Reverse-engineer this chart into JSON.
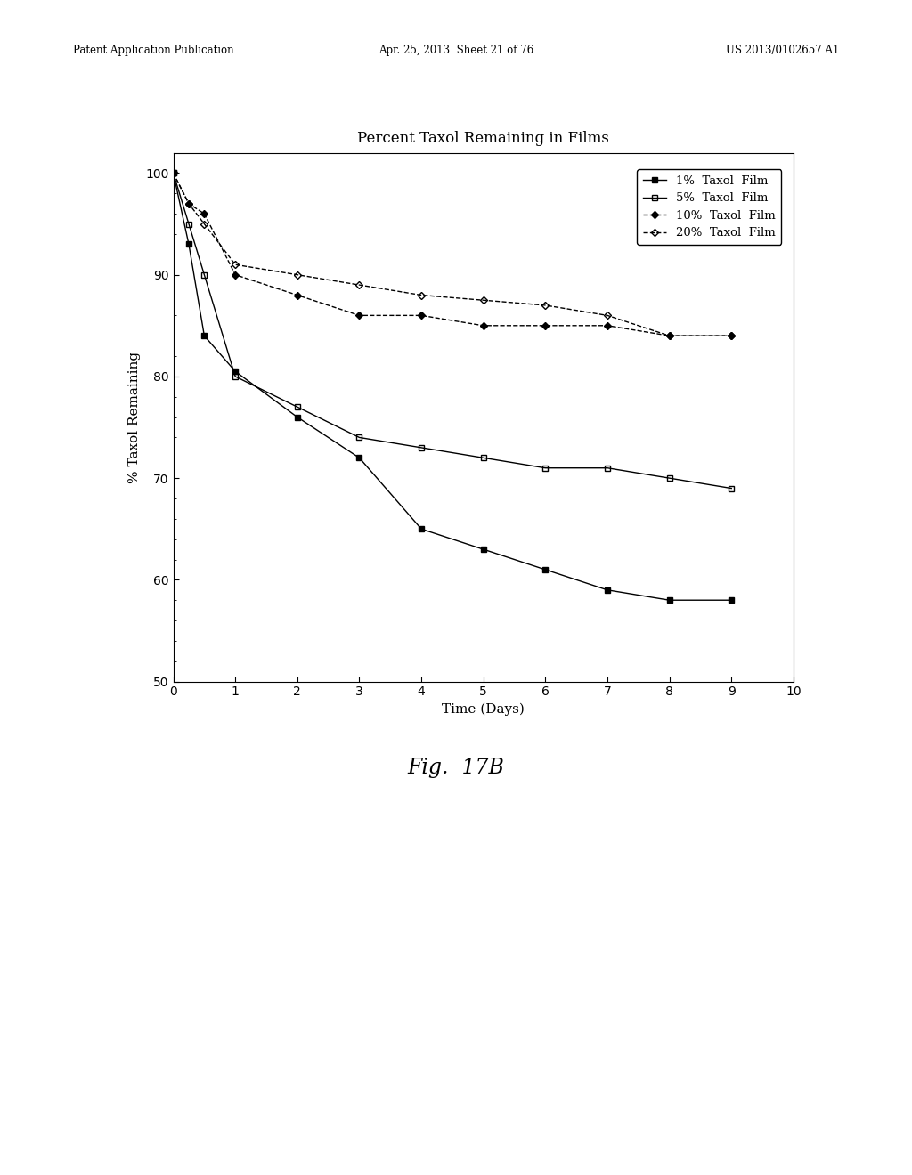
{
  "title": "Percent Taxol Remaining in Films",
  "xlabel": "Time (Days)",
  "ylabel": "% Taxol Remaining",
  "fig_caption": "Fig.  17B",
  "xlim": [
    0,
    10
  ],
  "ylim": [
    50,
    102
  ],
  "yticks": [
    50,
    60,
    70,
    80,
    90,
    100
  ],
  "xticks": [
    0,
    1,
    2,
    3,
    4,
    5,
    6,
    7,
    8,
    9,
    10
  ],
  "series": [
    {
      "label": "1%  Taxol  Film",
      "x": [
        0,
        0.25,
        0.5,
        1,
        2,
        3,
        4,
        5,
        6,
        7,
        8,
        9
      ],
      "y": [
        100,
        93,
        84,
        80.5,
        76,
        72,
        65,
        63,
        61,
        59,
        58,
        58
      ],
      "marker": "s",
      "fillstyle": "full",
      "linestyle": "-",
      "color": "black",
      "markersize": 5
    },
    {
      "label": "5%  Taxol  Film",
      "x": [
        0,
        0.25,
        0.5,
        1,
        2,
        3,
        4,
        5,
        6,
        7,
        8,
        9
      ],
      "y": [
        100,
        95,
        90,
        80,
        77,
        74,
        73,
        72,
        71,
        71,
        70,
        69
      ],
      "marker": "s",
      "fillstyle": "none",
      "linestyle": "-",
      "color": "black",
      "markersize": 5
    },
    {
      "label": "10%  Taxol  Film",
      "x": [
        0,
        0.25,
        0.5,
        1,
        2,
        3,
        4,
        5,
        6,
        7,
        8,
        9
      ],
      "y": [
        100,
        97,
        96,
        90,
        88,
        86,
        86,
        85,
        85,
        85,
        84,
        84
      ],
      "marker": "D",
      "fillstyle": "full",
      "linestyle": "--",
      "color": "black",
      "markersize": 4
    },
    {
      "label": "20%  Taxol  Film",
      "x": [
        0,
        0.25,
        0.5,
        1,
        2,
        3,
        4,
        5,
        6,
        7,
        8,
        9
      ],
      "y": [
        100,
        97,
        95,
        91,
        90,
        89,
        88,
        87.5,
        87,
        86,
        84,
        84
      ],
      "marker": "D",
      "fillstyle": "none",
      "linestyle": "--",
      "color": "black",
      "markersize": 4
    }
  ],
  "background_color": "#ffffff",
  "header_left": "Patent Application Publication",
  "header_mid": "Apr. 25, 2013  Sheet 21 of 76",
  "header_right": "US 2013/0102657 A1"
}
